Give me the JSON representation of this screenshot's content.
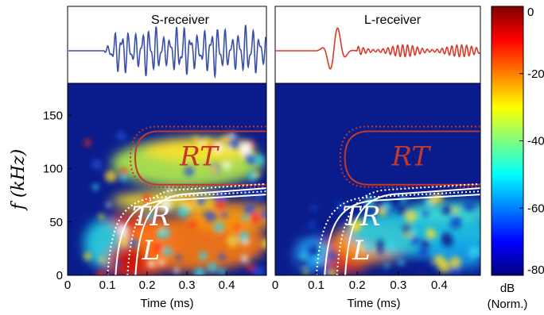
{
  "chart_data": [
    {
      "type": "heatmap",
      "panel": "left",
      "waveform_label": "S-receiver",
      "waveform_color": "#3a4fa8",
      "xlabel": "Time (ms)",
      "ylabel": "f (kHz)",
      "xlim": [
        0,
        0.5
      ],
      "ylim": [
        0,
        180
      ],
      "x_ticks": [
        "0",
        "0.1",
        "0.2",
        "0.3",
        "0.4"
      ],
      "x_tick_values": [
        0,
        0.1,
        0.2,
        0.3,
        0.4
      ],
      "y_ticks": [
        "0",
        "50",
        "100",
        "150"
      ],
      "y_tick_values": [
        0,
        50,
        100,
        150
      ],
      "regions": [
        {
          "label": "RT",
          "color": "#c0392b",
          "t_start": 0.17,
          "f_low": 85,
          "f_high": 135
        },
        {
          "label": "TR",
          "color": "#ffffff",
          "t": 0.21,
          "f": 47
        },
        {
          "label": "L",
          "color": "#ffffff",
          "t": 0.21,
          "f": 15
        }
      ]
    },
    {
      "type": "heatmap",
      "panel": "right",
      "waveform_label": "L-receiver",
      "waveform_color": "#d93a2b",
      "xlabel": "Time (ms)",
      "xlim": [
        0,
        0.5
      ],
      "ylim": [
        0,
        180
      ],
      "x_ticks": [
        "0",
        "0.1",
        "0.2",
        "0.3",
        "0.4"
      ],
      "x_tick_values": [
        0,
        0.1,
        0.2,
        0.3,
        0.4
      ],
      "regions": [
        {
          "label": "RT",
          "color": "#c0392b",
          "t_start": 0.17,
          "f_low": 85,
          "f_high": 135
        },
        {
          "label": "TR",
          "color": "#ffffff",
          "t": 0.21,
          "f": 47
        },
        {
          "label": "L",
          "color": "#ffffff",
          "t": 0.21,
          "f": 15
        }
      ]
    }
  ],
  "colorbar": {
    "ticks": [
      "0",
      "-20",
      "-40",
      "-60",
      "-80"
    ],
    "tick_values": [
      0,
      -20,
      -40,
      -60,
      -80
    ],
    "range": [
      -80,
      0
    ],
    "unit": "dB",
    "note": "(Norm.)",
    "colormap": [
      "#00007f",
      "#0000ff",
      "#007fff",
      "#00ffff",
      "#7fff7f",
      "#ffff00",
      "#ff7f00",
      "#ff0000",
      "#7f0000"
    ]
  }
}
